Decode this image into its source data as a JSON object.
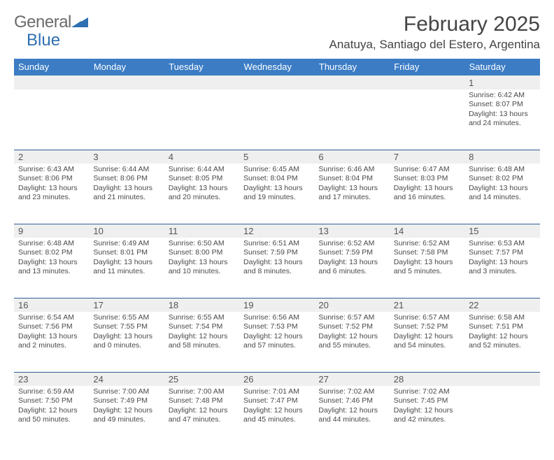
{
  "logo": {
    "general": "General",
    "blue": "Blue"
  },
  "title": "February 2025",
  "location": "Anatuya, Santiago del Estero, Argentina",
  "colors": {
    "header_bg": "#3b7cc4",
    "header_text": "#ffffff",
    "divider": "#2f5e95",
    "daynum_bg": "#efefef",
    "text": "#4a4a4a"
  },
  "day_headers": [
    "Sunday",
    "Monday",
    "Tuesday",
    "Wednesday",
    "Thursday",
    "Friday",
    "Saturday"
  ],
  "weeks": [
    [
      {
        "n": "",
        "sr": "",
        "ss": "",
        "dl": ""
      },
      {
        "n": "",
        "sr": "",
        "ss": "",
        "dl": ""
      },
      {
        "n": "",
        "sr": "",
        "ss": "",
        "dl": ""
      },
      {
        "n": "",
        "sr": "",
        "ss": "",
        "dl": ""
      },
      {
        "n": "",
        "sr": "",
        "ss": "",
        "dl": ""
      },
      {
        "n": "",
        "sr": "",
        "ss": "",
        "dl": ""
      },
      {
        "n": "1",
        "sr": "Sunrise: 6:42 AM",
        "ss": "Sunset: 8:07 PM",
        "dl": "Daylight: 13 hours and 24 minutes."
      }
    ],
    [
      {
        "n": "2",
        "sr": "Sunrise: 6:43 AM",
        "ss": "Sunset: 8:06 PM",
        "dl": "Daylight: 13 hours and 23 minutes."
      },
      {
        "n": "3",
        "sr": "Sunrise: 6:44 AM",
        "ss": "Sunset: 8:06 PM",
        "dl": "Daylight: 13 hours and 21 minutes."
      },
      {
        "n": "4",
        "sr": "Sunrise: 6:44 AM",
        "ss": "Sunset: 8:05 PM",
        "dl": "Daylight: 13 hours and 20 minutes."
      },
      {
        "n": "5",
        "sr": "Sunrise: 6:45 AM",
        "ss": "Sunset: 8:04 PM",
        "dl": "Daylight: 13 hours and 19 minutes."
      },
      {
        "n": "6",
        "sr": "Sunrise: 6:46 AM",
        "ss": "Sunset: 8:04 PM",
        "dl": "Daylight: 13 hours and 17 minutes."
      },
      {
        "n": "7",
        "sr": "Sunrise: 6:47 AM",
        "ss": "Sunset: 8:03 PM",
        "dl": "Daylight: 13 hours and 16 minutes."
      },
      {
        "n": "8",
        "sr": "Sunrise: 6:48 AM",
        "ss": "Sunset: 8:02 PM",
        "dl": "Daylight: 13 hours and 14 minutes."
      }
    ],
    [
      {
        "n": "9",
        "sr": "Sunrise: 6:48 AM",
        "ss": "Sunset: 8:02 PM",
        "dl": "Daylight: 13 hours and 13 minutes."
      },
      {
        "n": "10",
        "sr": "Sunrise: 6:49 AM",
        "ss": "Sunset: 8:01 PM",
        "dl": "Daylight: 13 hours and 11 minutes."
      },
      {
        "n": "11",
        "sr": "Sunrise: 6:50 AM",
        "ss": "Sunset: 8:00 PM",
        "dl": "Daylight: 13 hours and 10 minutes."
      },
      {
        "n": "12",
        "sr": "Sunrise: 6:51 AM",
        "ss": "Sunset: 7:59 PM",
        "dl": "Daylight: 13 hours and 8 minutes."
      },
      {
        "n": "13",
        "sr": "Sunrise: 6:52 AM",
        "ss": "Sunset: 7:59 PM",
        "dl": "Daylight: 13 hours and 6 minutes."
      },
      {
        "n": "14",
        "sr": "Sunrise: 6:52 AM",
        "ss": "Sunset: 7:58 PM",
        "dl": "Daylight: 13 hours and 5 minutes."
      },
      {
        "n": "15",
        "sr": "Sunrise: 6:53 AM",
        "ss": "Sunset: 7:57 PM",
        "dl": "Daylight: 13 hours and 3 minutes."
      }
    ],
    [
      {
        "n": "16",
        "sr": "Sunrise: 6:54 AM",
        "ss": "Sunset: 7:56 PM",
        "dl": "Daylight: 13 hours and 2 minutes."
      },
      {
        "n": "17",
        "sr": "Sunrise: 6:55 AM",
        "ss": "Sunset: 7:55 PM",
        "dl": "Daylight: 13 hours and 0 minutes."
      },
      {
        "n": "18",
        "sr": "Sunrise: 6:55 AM",
        "ss": "Sunset: 7:54 PM",
        "dl": "Daylight: 12 hours and 58 minutes."
      },
      {
        "n": "19",
        "sr": "Sunrise: 6:56 AM",
        "ss": "Sunset: 7:53 PM",
        "dl": "Daylight: 12 hours and 57 minutes."
      },
      {
        "n": "20",
        "sr": "Sunrise: 6:57 AM",
        "ss": "Sunset: 7:52 PM",
        "dl": "Daylight: 12 hours and 55 minutes."
      },
      {
        "n": "21",
        "sr": "Sunrise: 6:57 AM",
        "ss": "Sunset: 7:52 PM",
        "dl": "Daylight: 12 hours and 54 minutes."
      },
      {
        "n": "22",
        "sr": "Sunrise: 6:58 AM",
        "ss": "Sunset: 7:51 PM",
        "dl": "Daylight: 12 hours and 52 minutes."
      }
    ],
    [
      {
        "n": "23",
        "sr": "Sunrise: 6:59 AM",
        "ss": "Sunset: 7:50 PM",
        "dl": "Daylight: 12 hours and 50 minutes."
      },
      {
        "n": "24",
        "sr": "Sunrise: 7:00 AM",
        "ss": "Sunset: 7:49 PM",
        "dl": "Daylight: 12 hours and 49 minutes."
      },
      {
        "n": "25",
        "sr": "Sunrise: 7:00 AM",
        "ss": "Sunset: 7:48 PM",
        "dl": "Daylight: 12 hours and 47 minutes."
      },
      {
        "n": "26",
        "sr": "Sunrise: 7:01 AM",
        "ss": "Sunset: 7:47 PM",
        "dl": "Daylight: 12 hours and 45 minutes."
      },
      {
        "n": "27",
        "sr": "Sunrise: 7:02 AM",
        "ss": "Sunset: 7:46 PM",
        "dl": "Daylight: 12 hours and 44 minutes."
      },
      {
        "n": "28",
        "sr": "Sunrise: 7:02 AM",
        "ss": "Sunset: 7:45 PM",
        "dl": "Daylight: 12 hours and 42 minutes."
      },
      {
        "n": "",
        "sr": "",
        "ss": "",
        "dl": ""
      }
    ]
  ]
}
